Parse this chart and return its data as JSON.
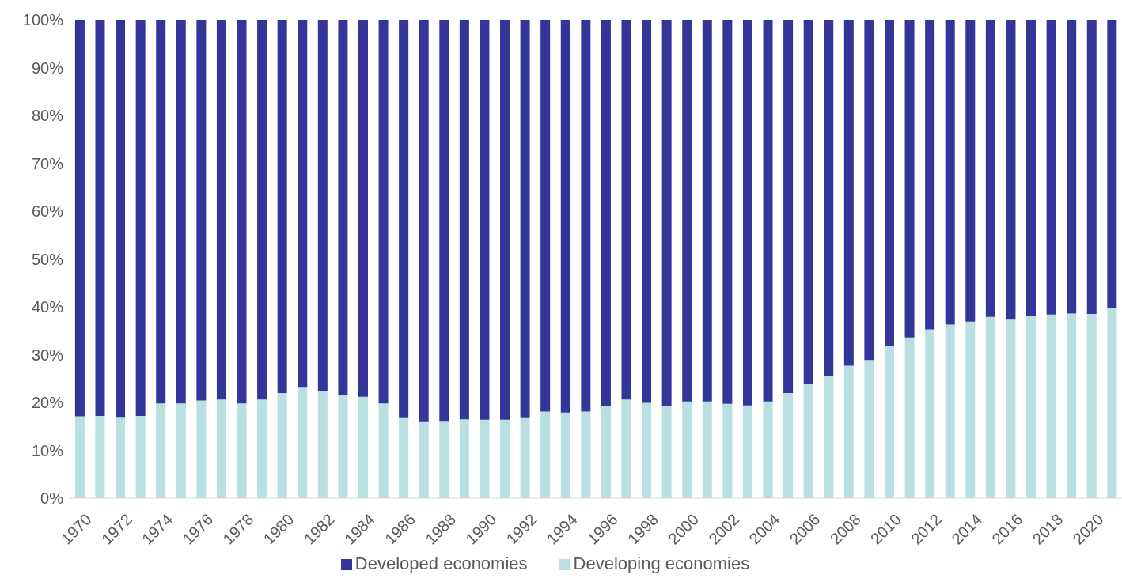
{
  "chart_data": {
    "type": "bar",
    "stacked": true,
    "categories": [
      "1970",
      null,
      "1972",
      null,
      "1974",
      null,
      "1976",
      null,
      "1978",
      null,
      "1980",
      null,
      "1982",
      null,
      "1984",
      null,
      "1986",
      null,
      "1988",
      null,
      "1990",
      null,
      "1992",
      null,
      "1994",
      null,
      "1996",
      null,
      "1998",
      null,
      "2000",
      null,
      "2002",
      null,
      "2004",
      null,
      "2006",
      null,
      "2008",
      null,
      "2010",
      null,
      "2012",
      null,
      "2014",
      null,
      "2016",
      null,
      "2018",
      null,
      "2020",
      null
    ],
    "series": [
      {
        "name": "Developing economies",
        "color": "#b8e0e0",
        "values": [
          17.1,
          17.2,
          17.0,
          17.2,
          19.8,
          19.8,
          20.4,
          20.6,
          19.8,
          20.6,
          22.0,
          23.1,
          22.5,
          21.5,
          21.2,
          19.8,
          16.9,
          15.9,
          16.0,
          16.5,
          16.4,
          16.4,
          16.9,
          18.1,
          17.9,
          18.1,
          19.3,
          20.6,
          19.9,
          19.3,
          20.2,
          20.2,
          19.7,
          19.4,
          20.2,
          22.0,
          23.8,
          25.6,
          27.7,
          28.9,
          31.9,
          33.6,
          35.3,
          36.3,
          36.9,
          37.9,
          37.3,
          38.1,
          38.4,
          38.6,
          38.5,
          39.8
        ]
      },
      {
        "name": "Developed economies",
        "color": "#343499",
        "values": [
          82.9,
          82.8,
          83.0,
          82.8,
          80.2,
          80.2,
          79.6,
          79.4,
          80.2,
          79.4,
          78.0,
          76.9,
          77.5,
          78.5,
          78.8,
          80.2,
          83.1,
          84.1,
          84.0,
          83.5,
          83.6,
          83.6,
          83.1,
          81.9,
          82.1,
          81.9,
          80.7,
          79.4,
          80.1,
          80.7,
          79.8,
          79.8,
          80.3,
          80.6,
          79.8,
          78.0,
          76.2,
          74.4,
          72.3,
          71.1,
          68.1,
          66.4,
          64.7,
          63.7,
          63.1,
          62.1,
          62.7,
          61.9,
          61.6,
          61.4,
          61.5,
          60.2
        ]
      }
    ],
    "ylim": [
      0,
      100
    ],
    "yticks": [
      {
        "value": 0,
        "label": "0%"
      },
      {
        "value": 10,
        "label": "10%"
      },
      {
        "value": 20,
        "label": "20%"
      },
      {
        "value": 30,
        "label": "30%"
      },
      {
        "value": 40,
        "label": "40%"
      },
      {
        "value": 50,
        "label": "50%"
      },
      {
        "value": 60,
        "label": "60%"
      },
      {
        "value": 70,
        "label": "70%"
      },
      {
        "value": 80,
        "label": "80%"
      },
      {
        "value": 90,
        "label": "90%"
      },
      {
        "value": 100,
        "label": "100%"
      }
    ],
    "grid": false,
    "legend": "bottom"
  }
}
